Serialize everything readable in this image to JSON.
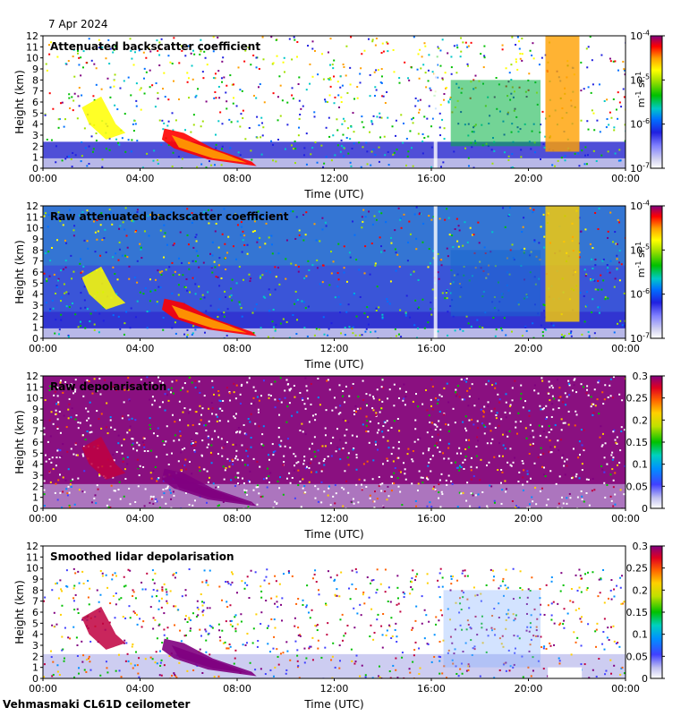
{
  "date_label": "7 Apr 2024",
  "instrument_label": "Vehmasmaki CL61D ceilometer",
  "chart_data": [
    {
      "type": "heatmap",
      "title": "Attenuated backscatter coefficient",
      "xlabel": "Time (UTC)",
      "ylabel": "Height (km)",
      "xticks": [
        "00:00",
        "04:00",
        "08:00",
        "12:00",
        "16:00",
        "20:00",
        "00:00"
      ],
      "yticks": [
        "0",
        "1",
        "2",
        "3",
        "4",
        "5",
        "6",
        "7",
        "8",
        "9",
        "10",
        "11",
        "12"
      ],
      "ylim": [
        0,
        12
      ],
      "colorbar": {
        "scale": "log",
        "range": [
          1e-07,
          0.0001
        ],
        "ticks": [
          {
            "base": "10",
            "exp": "-7"
          },
          {
            "base": "10",
            "exp": "-6"
          },
          {
            "base": "10",
            "exp": "-5"
          },
          {
            "base": "10",
            "exp": "-4"
          }
        ],
        "unit": {
          "m_label": "m",
          "m_exp": "-1",
          "sr_label": "sr",
          "sr_exp": "-1"
        }
      }
    },
    {
      "type": "heatmap",
      "title": "Raw attenuated backscatter coefficient",
      "xlabel": "Time (UTC)",
      "ylabel": "Height (km)",
      "xticks": [
        "00:00",
        "04:00",
        "08:00",
        "12:00",
        "16:00",
        "20:00",
        "00:00"
      ],
      "yticks": [
        "0",
        "1",
        "2",
        "3",
        "4",
        "5",
        "6",
        "7",
        "8",
        "9",
        "10",
        "11",
        "12"
      ],
      "ylim": [
        0,
        12
      ],
      "colorbar": {
        "scale": "log",
        "range": [
          1e-07,
          0.0001
        ],
        "ticks": [
          {
            "base": "10",
            "exp": "-7"
          },
          {
            "base": "10",
            "exp": "-6"
          },
          {
            "base": "10",
            "exp": "-5"
          },
          {
            "base": "10",
            "exp": "-4"
          }
        ],
        "unit": {
          "m_label": "m",
          "m_exp": "-1",
          "sr_label": "sr",
          "sr_exp": "-1"
        }
      }
    },
    {
      "type": "heatmap",
      "title": "Raw depolarisation",
      "xlabel": "Time (UTC)",
      "ylabel": "Height (km)",
      "xticks": [
        "00:00",
        "04:00",
        "08:00",
        "12:00",
        "16:00",
        "20:00",
        "00:00"
      ],
      "yticks": [
        "0",
        "1",
        "2",
        "3",
        "4",
        "5",
        "6",
        "7",
        "8",
        "9",
        "10",
        "11",
        "12"
      ],
      "ylim": [
        0,
        12
      ],
      "colorbar": {
        "scale": "linear",
        "range": [
          0,
          0.3
        ],
        "ticks": [
          "0",
          "0.05",
          "0.1",
          "0.15",
          "0.2",
          "0.25",
          "0.3"
        ]
      }
    },
    {
      "type": "heatmap",
      "title": "Smoothed lidar depolarisation",
      "xlabel": "Time (UTC)",
      "ylabel": "Height (km)",
      "xticks": [
        "00:00",
        "04:00",
        "08:00",
        "12:00",
        "16:00",
        "20:00",
        "00:00"
      ],
      "yticks": [
        "0",
        "1",
        "2",
        "3",
        "4",
        "5",
        "6",
        "7",
        "8",
        "9",
        "10",
        "11",
        "12"
      ],
      "ylim": [
        0,
        12
      ],
      "colorbar": {
        "scale": "linear",
        "range": [
          0,
          0.3
        ],
        "ticks": [
          "0",
          "0.05",
          "0.1",
          "0.15",
          "0.2",
          "0.25",
          "0.3"
        ]
      }
    }
  ]
}
